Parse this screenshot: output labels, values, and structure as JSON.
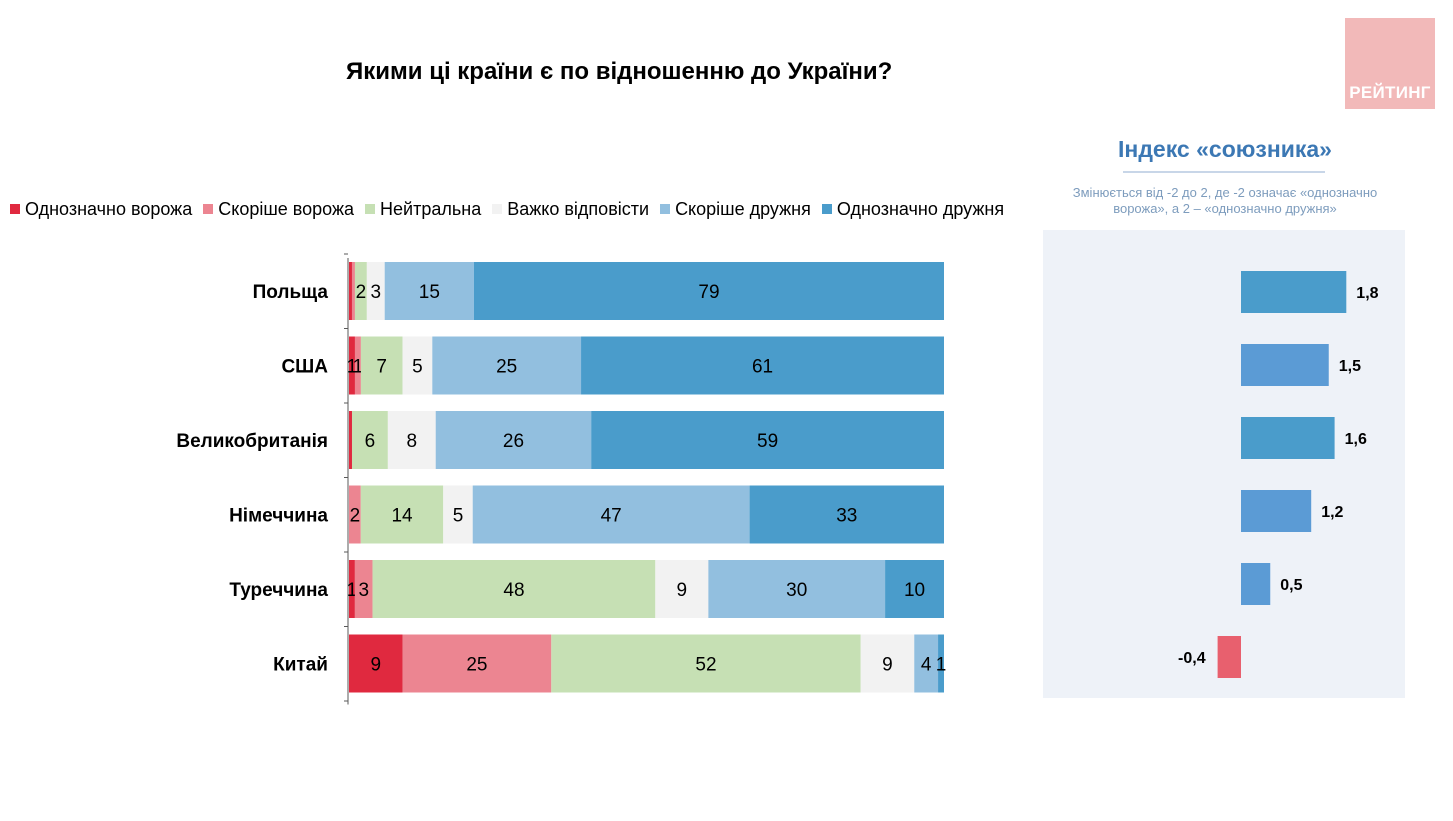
{
  "title": "Якими ці країни є по відношенню до України?",
  "logo": "РЕЙТИНГ",
  "legend": [
    {
      "label": "Однозначно ворожа",
      "color": "#e0293f"
    },
    {
      "label": "Скоріше ворожа",
      "color": "#ec8591"
    },
    {
      "label": "Нейтральна",
      "color": "#c6e0b4"
    },
    {
      "label": "Важко відповісти",
      "color": "#f2f2f2"
    },
    {
      "label": "Скоріше дружня",
      "color": "#92bfdf"
    },
    {
      "label": "Однозначно дружня",
      "color": "#4a9ccb"
    }
  ],
  "chart_data": [
    {
      "type": "bar",
      "orientation": "horizontal",
      "stacked": true,
      "title": "Якими ці країни є по відношенню до України?",
      "categories": [
        "Польща",
        "США",
        "Великобританія",
        "Німеччина",
        "Туреччина",
        "Китай"
      ],
      "series": [
        {
          "name": "Однозначно ворожа",
          "values": [
            0.5,
            1,
            0.5,
            0,
            1,
            9
          ],
          "labels": [
            "",
            "1",
            "",
            "",
            "1",
            "9"
          ]
        },
        {
          "name": "Скоріше ворожа",
          "values": [
            0.5,
            1,
            0,
            2,
            3,
            25
          ],
          "labels": [
            "",
            "1",
            "",
            "2",
            "3",
            "25"
          ]
        },
        {
          "name": "Нейтральна",
          "values": [
            2,
            7,
            6,
            14,
            48,
            52
          ],
          "labels": [
            "2",
            "7",
            "6",
            "14",
            "48",
            "52"
          ]
        },
        {
          "name": "Важко відповісти",
          "values": [
            3,
            5,
            8,
            5,
            9,
            9
          ],
          "labels": [
            "3",
            "5",
            "8",
            "5",
            "9",
            "9"
          ]
        },
        {
          "name": "Скоріше дружня",
          "values": [
            15,
            25,
            26,
            47,
            30,
            4
          ],
          "labels": [
            "15",
            "25",
            "26",
            "47",
            "30",
            "4"
          ]
        },
        {
          "name": "Однозначно дружня",
          "values": [
            79,
            61,
            59,
            33,
            10,
            1
          ],
          "labels": [
            "79",
            "61",
            "59",
            "33",
            "10",
            "1"
          ]
        }
      ],
      "xlim": [
        0,
        100
      ],
      "legend_position": "top"
    },
    {
      "type": "bar",
      "orientation": "horizontal",
      "title": "Індекс «союзника»",
      "subtitle": "Змінюється від -2 до 2, де -2 означає «однозначно ворожа», а 2 – «однозначно дружня»",
      "categories": [
        "Польща",
        "США",
        "Великобританія",
        "Німеччина",
        "Туреччина",
        "Китай"
      ],
      "values": [
        1.8,
        1.5,
        1.6,
        1.2,
        0.5,
        -0.4
      ],
      "labels": [
        "1,8",
        "1,5",
        "1,6",
        "1,2",
        "0,5",
        "-0,4"
      ],
      "colors": [
        "#4a9ccb",
        "#5b9bd5",
        "#4a9ccb",
        "#5b9bd5",
        "#5b9bd5",
        "#e8606e"
      ],
      "xlim": [
        -2,
        2
      ]
    }
  ]
}
